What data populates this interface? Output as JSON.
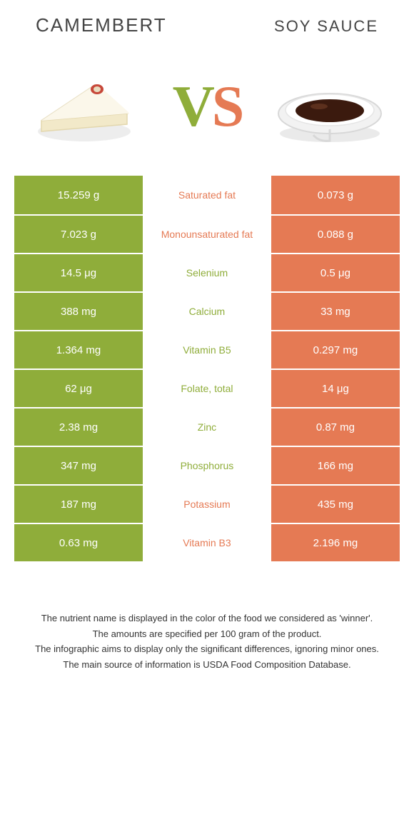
{
  "colors": {
    "left": "#8fad3a",
    "right": "#e57a54",
    "background": "#ffffff",
    "text": "#333333"
  },
  "header": {
    "left_title": "Camembert",
    "right_title": "Soy sauce",
    "vs_v": "V",
    "vs_s": "S"
  },
  "rows": [
    {
      "left": "15.259 g",
      "label": "Saturated fat",
      "right": "0.073 g",
      "winner": "right"
    },
    {
      "left": "7.023 g",
      "label": "Monounsaturated fat",
      "right": "0.088 g",
      "winner": "right"
    },
    {
      "left": "14.5 μg",
      "label": "Selenium",
      "right": "0.5 μg",
      "winner": "left"
    },
    {
      "left": "388 mg",
      "label": "Calcium",
      "right": "33 mg",
      "winner": "left"
    },
    {
      "left": "1.364 mg",
      "label": "Vitamin B5",
      "right": "0.297 mg",
      "winner": "left"
    },
    {
      "left": "62 μg",
      "label": "Folate, total",
      "right": "14 μg",
      "winner": "left"
    },
    {
      "left": "2.38 mg",
      "label": "Zinc",
      "right": "0.87 mg",
      "winner": "left"
    },
    {
      "left": "347 mg",
      "label": "Phosphorus",
      "right": "166 mg",
      "winner": "left"
    },
    {
      "left": "187 mg",
      "label": "Potassium",
      "right": "435 mg",
      "winner": "right"
    },
    {
      "left": "0.63 mg",
      "label": "Vitamin B3",
      "right": "2.196 mg",
      "winner": "right"
    }
  ],
  "footnotes": [
    "The nutrient name is displayed in the color of the food we considered as 'winner'.",
    "The amounts are specified per 100 gram of the product.",
    "The infographic aims to display only the significant differences, ignoring minor ones.",
    "The main source of information is USDA Food Composition Database."
  ]
}
